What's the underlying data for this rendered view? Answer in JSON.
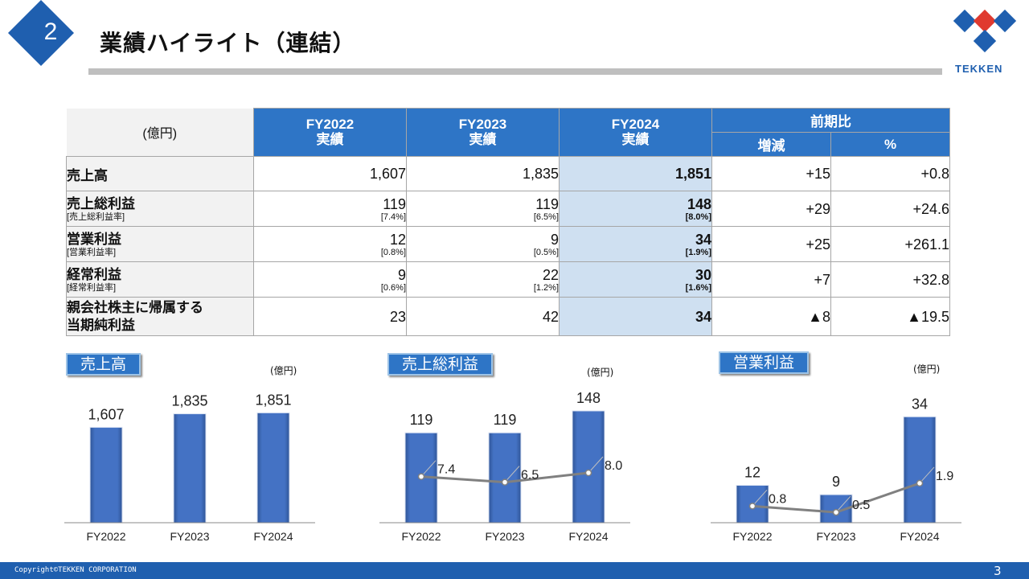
{
  "header": {
    "section_number": "2",
    "title": "業績ハイライト（連結）",
    "logo_text": "TEKKEN"
  },
  "table": {
    "unit": "(億円)",
    "columns": [
      {
        "year": "FY2022",
        "sub": "実績"
      },
      {
        "year": "FY2023",
        "sub": "実績"
      },
      {
        "year": "FY2024",
        "sub": "実績"
      }
    ],
    "compare_header": "前期比",
    "compare_cols": [
      "増減",
      "%"
    ],
    "rows": [
      {
        "label": "売上高",
        "label2": "",
        "values": [
          "1,607",
          "1,835",
          "1,851"
        ],
        "rates": [
          "",
          "",
          ""
        ],
        "diff": "+15",
        "pct": "+0.8"
      },
      {
        "label": "売上総利益",
        "label2": "[売上総利益率]",
        "values": [
          "119",
          "119",
          "148"
        ],
        "rates": [
          "[7.4%]",
          "[6.5%]",
          "[8.0%]"
        ],
        "diff": "+29",
        "pct": "+24.6"
      },
      {
        "label": "営業利益",
        "label2": "[営業利益率]",
        "values": [
          "12",
          "9",
          "34"
        ],
        "rates": [
          "[0.8%]",
          "[0.5%]",
          "[1.9%]"
        ],
        "diff": "+25",
        "pct": "+261.1"
      },
      {
        "label": "経常利益",
        "label2": "[経常利益率]",
        "values": [
          "9",
          "22",
          "30"
        ],
        "rates": [
          "[0.6%]",
          "[1.2%]",
          "[1.6%]"
        ],
        "diff": "+7",
        "pct": "+32.8"
      },
      {
        "label": "親会社株主に帰属する",
        "label2": "当期純利益",
        "values": [
          "23",
          "42",
          "34"
        ],
        "rates": [
          "",
          "",
          ""
        ],
        "diff": "▲8",
        "pct": "▲19.5"
      }
    ]
  },
  "chart_data": [
    {
      "type": "bar",
      "title": "売上高",
      "unit": "(億円)",
      "categories": [
        "FY2022",
        "FY2023",
        "FY2024"
      ],
      "values": [
        1607,
        1835,
        1851
      ],
      "labels": [
        "1,607",
        "1,835",
        "1,851"
      ],
      "ylim": [
        0,
        2100
      ]
    },
    {
      "type": "bar",
      "title": "売上総利益",
      "unit": "(億円)",
      "categories": [
        "FY2022",
        "FY2023",
        "FY2024"
      ],
      "values": [
        119,
        119,
        148
      ],
      "labels": [
        "119",
        "119",
        "148"
      ],
      "ylim": [
        0,
        165
      ],
      "rate_values": [
        7.4,
        6.5,
        8.0
      ],
      "rate_labels": [
        "7.4",
        "6.5",
        "8.0"
      ]
    },
    {
      "type": "bar",
      "title": "営業利益",
      "unit": "(億円)",
      "categories": [
        "FY2022",
        "FY2023",
        "FY2024"
      ],
      "values": [
        12,
        9,
        34
      ],
      "labels": [
        "12",
        "9",
        "34"
      ],
      "ylim": [
        0,
        40
      ],
      "rate_values": [
        0.8,
        0.5,
        1.9
      ],
      "rate_labels": [
        "0.8",
        "0.5",
        "1.9"
      ]
    }
  ],
  "footer": {
    "copyright": "Copyright©TEKKEN CORPORATION",
    "page": "3"
  },
  "colors": {
    "brand_blue": "#1f5faf",
    "header_blue": "#2e75c6",
    "highlight": "#cfe0f1",
    "bar": "#4472c4",
    "logo_red": "#e03a2f"
  }
}
